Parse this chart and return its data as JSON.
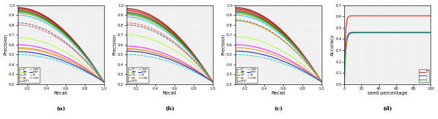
{
  "subplot_labels": [
    "(a)",
    "(b)",
    "(c)",
    "(d)"
  ],
  "xlabel_abc": "Recall",
  "ylabel_abc": "Precision",
  "xlabel_d": "seed percentage",
  "ylabel_d": "Accuracy",
  "xlim_abc": [
    0.1,
    1.0
  ],
  "ylim_abc": [
    0.2,
    1.0
  ],
  "xlim_d": [
    0,
    100
  ],
  "ylim_d": [
    0.0,
    0.7
  ],
  "xticks_abc": [
    0.2,
    0.4,
    0.6,
    0.8,
    1.0
  ],
  "yticks_abc": [
    0.2,
    0.3,
    0.4,
    0.5,
    0.6,
    0.7,
    0.8,
    0.9,
    1.0
  ],
  "xticks_d": [
    0,
    20,
    40,
    60,
    80,
    100
  ],
  "yticks_d": [
    0.0,
    0.1,
    0.2,
    0.3,
    0.4,
    0.5,
    0.6,
    0.7
  ],
  "method_order": [
    "IT",
    "AIM",
    "GB",
    "SB",
    "NLTU",
    "TurB",
    "SOM",
    "SS",
    "ICON"
  ],
  "methods": {
    "IT": {
      "color": "#00BFFF",
      "style": "-",
      "lw": 0.7
    },
    "AIM": {
      "color": "#ADFF2F",
      "style": "-",
      "lw": 0.7
    },
    "GB": {
      "color": "#555555",
      "style": "--",
      "lw": 0.7
    },
    "SB": {
      "color": "#DAA520",
      "style": "-",
      "lw": 0.7
    },
    "NLTU": {
      "color": "#FF00FF",
      "style": "-",
      "lw": 0.7
    },
    "TurB": {
      "color": "#FF8C00",
      "style": "-",
      "lw": 0.7
    },
    "SOM": {
      "color": "#0000CD",
      "style": "-",
      "lw": 0.7
    },
    "SS": {
      "color": "#00CED1",
      "style": "--",
      "lw": 0.7
    },
    "ICON": {
      "color": "#FF4444",
      "style": "--",
      "lw": 0.7
    }
  },
  "method_starts": {
    "IT": [
      0.9,
      0.88,
      0.9
    ],
    "AIM": [
      0.67,
      0.7,
      0.68
    ],
    "GB": [
      0.82,
      0.8,
      0.85
    ],
    "SB": [
      0.56,
      0.555,
      0.84
    ],
    "NLTU": [
      0.6,
      0.585,
      0.6
    ],
    "TurB": [
      0.57,
      0.56,
      0.57
    ],
    "SOM": [
      0.53,
      0.535,
      0.535
    ],
    "SS": [
      0.5,
      0.5,
      0.5
    ],
    "ICON": [
      0.8,
      0.82,
      0.955
    ]
  },
  "top_curves": [
    {
      "color": "#7B0000",
      "lw": 0.8,
      "style": "-",
      "starts": [
        0.975,
        0.965,
        0.976
      ]
    },
    {
      "color": "#CC0000",
      "lw": 0.8,
      "style": "-",
      "starts": [
        0.965,
        0.95,
        0.964
      ]
    },
    {
      "color": "#FF4444",
      "lw": 0.8,
      "style": "-",
      "starts": [
        0.955,
        0.937,
        0.952
      ]
    },
    {
      "color": "#006400",
      "lw": 0.8,
      "style": "-",
      "starts": [
        0.945,
        0.924,
        0.941
      ]
    },
    {
      "color": "#228B22",
      "lw": 0.8,
      "style": "-",
      "starts": [
        0.933,
        0.912,
        0.929
      ]
    },
    {
      "color": "#8DB600",
      "lw": 0.8,
      "style": "-",
      "starts": [
        0.921,
        0.9,
        0.917
      ]
    }
  ],
  "d_curves": [
    {
      "label": "E",
      "color": "#FF2222",
      "style": "-",
      "plateau": 0.605,
      "rate": 0.9
    },
    {
      "label": "L",
      "color": "#4444FF",
      "style": "-",
      "plateau": 0.46,
      "rate": 0.7
    },
    {
      "label": "J",
      "color": "#22AA22",
      "style": "-",
      "plateau": 0.455,
      "rate": 0.6
    }
  ],
  "bg_color": "#f0f0f0"
}
